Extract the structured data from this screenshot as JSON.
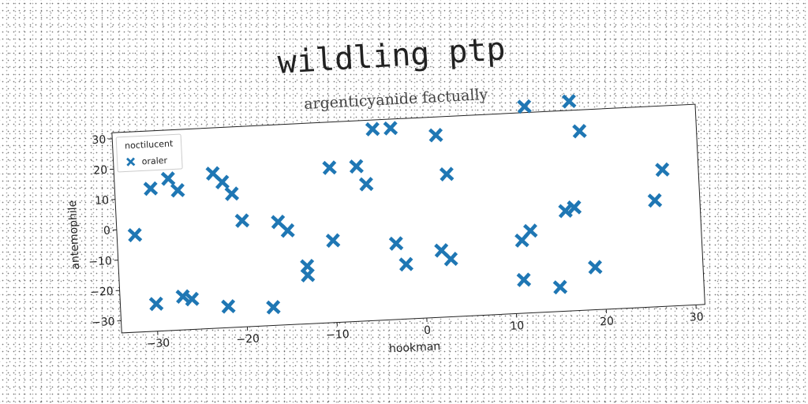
{
  "chart_data": {
    "type": "scatter",
    "title": "wildling ptp",
    "subtitle": "argenticyanide factually",
    "xlabel": "hookman",
    "ylabel": "antemophile",
    "xlim": [
      -34,
      31
    ],
    "ylim": [
      -34,
      32
    ],
    "xticks": [
      -30,
      -20,
      -10,
      0,
      10,
      20,
      30
    ],
    "yticks": [
      -30,
      -20,
      -10,
      0,
      10,
      20,
      30
    ],
    "grid": false,
    "legend": {
      "title": "noctilucent",
      "position": "top-left"
    },
    "series": [
      {
        "name": "oraler",
        "color": "#1f77b4",
        "marker": "x-filled",
        "points": [
          [
            -32,
            -2
          ],
          [
            -30,
            13
          ],
          [
            -30,
            -25
          ],
          [
            -28,
            16
          ],
          [
            -27,
            12
          ],
          [
            -27,
            -23
          ],
          [
            -26,
            -24
          ],
          [
            -23,
            17
          ],
          [
            -22,
            14
          ],
          [
            -22,
            -27
          ],
          [
            -21,
            10
          ],
          [
            -20,
            1
          ],
          [
            -17,
            -28
          ],
          [
            -16,
            0
          ],
          [
            -15,
            -3
          ],
          [
            -13,
            -15
          ],
          [
            -13,
            -18
          ],
          [
            -10,
            17
          ],
          [
            -10,
            -7
          ],
          [
            -7,
            17
          ],
          [
            -6,
            11
          ],
          [
            -5,
            29
          ],
          [
            -3,
            29
          ],
          [
            -3,
            -9
          ],
          [
            -2,
            -16
          ],
          [
            2,
            -12
          ],
          [
            2,
            26
          ],
          [
            3,
            -15
          ],
          [
            3,
            13
          ],
          [
            11,
            -10
          ],
          [
            11,
            -23
          ],
          [
            12,
            -7
          ],
          [
            12,
            34
          ],
          [
            15,
            -26
          ],
          [
            16,
            -1
          ],
          [
            17,
            0
          ],
          [
            17,
            0
          ],
          [
            17,
            35
          ],
          [
            18,
            25
          ],
          [
            19,
            -20
          ],
          [
            26,
            1
          ],
          [
            27,
            11
          ]
        ]
      }
    ]
  }
}
